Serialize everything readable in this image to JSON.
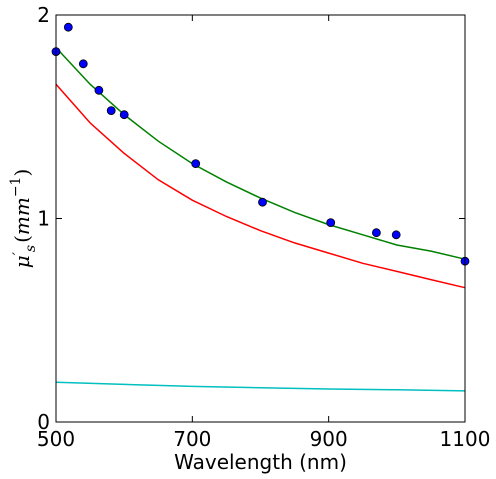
{
  "chart_data": {
    "type": "line",
    "xlabel": "Wavelength (nm)",
    "ylabel": {
      "mu": "μ",
      "prime": "′",
      "sub": "s",
      "paren_open": "(",
      "unit": "mm",
      "sup": "−1",
      "paren_close": ")"
    },
    "xlim": [
      500,
      1100
    ],
    "ylim": [
      0,
      2
    ],
    "xticks": [
      500,
      700,
      900,
      1100
    ],
    "yticks": [
      0,
      1,
      2
    ],
    "series": [
      {
        "mark": "line",
        "color": "#008000",
        "x": [
          500,
          550,
          600,
          650,
          700,
          750,
          800,
          850,
          900,
          950,
          1000,
          1050,
          1100
        ],
        "y": [
          1.84,
          1.66,
          1.51,
          1.38,
          1.27,
          1.18,
          1.1,
          1.03,
          0.97,
          0.92,
          0.87,
          0.84,
          0.8
        ]
      },
      {
        "mark": "line",
        "color": "#ff0000",
        "x": [
          500,
          550,
          600,
          650,
          700,
          750,
          800,
          850,
          900,
          950,
          1000,
          1050,
          1100
        ],
        "y": [
          1.66,
          1.47,
          1.32,
          1.19,
          1.09,
          1.01,
          0.94,
          0.88,
          0.83,
          0.78,
          0.74,
          0.7,
          0.66
        ]
      },
      {
        "mark": "line",
        "color": "#00bfbf",
        "x": [
          500,
          600,
          700,
          800,
          900,
          1000,
          1100
        ],
        "y": [
          0.195,
          0.185,
          0.175,
          0.168,
          0.162,
          0.158,
          0.153
        ]
      },
      {
        "mark": "scatter",
        "color": "#0000ff",
        "x": [
          500,
          518,
          540,
          563,
          581,
          600,
          705,
          803,
          903,
          970,
          999,
          1100
        ],
        "y": [
          1.82,
          1.94,
          1.76,
          1.63,
          1.53,
          1.51,
          1.27,
          1.08,
          0.98,
          0.93,
          0.92,
          0.79
        ]
      }
    ]
  }
}
